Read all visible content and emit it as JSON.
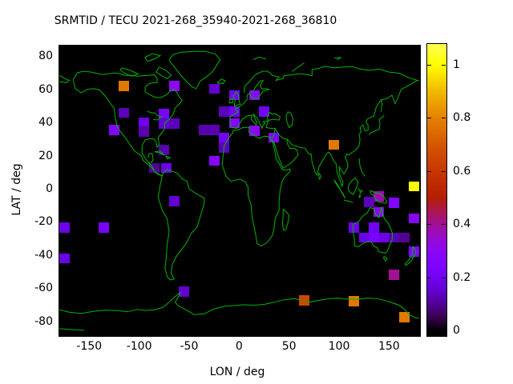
{
  "title": "SRMTID / TECU 2021-268_35940-2021-268_36810",
  "chart_data": {
    "type": "heatmap",
    "title": "SRMTID / TECU 2021-268_35940-2021-268_36810",
    "xlabel": "LON / deg",
    "ylabel": "LAT / deg",
    "xlim": [
      -180,
      180
    ],
    "ylim": [
      -89,
      86
    ],
    "x_ticks": [
      -150,
      -100,
      -50,
      0,
      50,
      100,
      150
    ],
    "y_ticks": [
      80,
      60,
      40,
      20,
      0,
      -20,
      -40,
      -60,
      -80
    ],
    "grid": false,
    "background_color": "#000000",
    "coastline_color": "#00b400",
    "cell_size": {
      "lon_deg": 10,
      "lat_deg": 6.1
    },
    "colorbar": {
      "min": 0,
      "max": 1,
      "ticks": [
        0,
        0.2,
        0.4,
        0.6,
        0.8,
        1
      ],
      "tick_labels": [
        "0",
        "0.2",
        "0.4",
        "0.6",
        "0.8",
        "1"
      ],
      "position": "right",
      "palette": "gnuplot default pm3d (black-violet-magenta-red-orange-yellow)"
    },
    "cells": [
      {
        "lon": -115,
        "lat": 62,
        "value": 0.78
      },
      {
        "lon": -65,
        "lat": 62,
        "value": 0.3
      },
      {
        "lon": -25,
        "lat": 60.5,
        "value": 0.15
      },
      {
        "lon": -5,
        "lat": 56.5,
        "value": 0.2
      },
      {
        "lon": 15,
        "lat": 56.5,
        "value": 0.27
      },
      {
        "lon": -15,
        "lat": 46.5,
        "value": 0.13
      },
      {
        "lon": -5,
        "lat": 46.5,
        "value": 0.2
      },
      {
        "lon": 25,
        "lat": 46.5,
        "value": 0.2
      },
      {
        "lon": -115,
        "lat": 46,
        "value": 0.13
      },
      {
        "lon": -75,
        "lat": 45.3,
        "value": 0.22
      },
      {
        "lon": -95,
        "lat": 40,
        "value": 0.18
      },
      {
        "lon": -75,
        "lat": 39.3,
        "value": 0.15
      },
      {
        "lon": -65,
        "lat": 39.3,
        "value": 0.13
      },
      {
        "lon": -125,
        "lat": 35.4,
        "value": 0.25
      },
      {
        "lon": -95,
        "lat": 34.5,
        "value": 0.12
      },
      {
        "lon": -35,
        "lat": 35.5,
        "value": 0.12
      },
      {
        "lon": -25,
        "lat": 35.5,
        "value": 0.12
      },
      {
        "lon": -5,
        "lat": 39.5,
        "value": 0.27
      },
      {
        "lon": 15,
        "lat": 35,
        "value": 0.3
      },
      {
        "lon": 35,
        "lat": 31,
        "value": 0.25
      },
      {
        "lon": -15,
        "lat": 30.8,
        "value": 0.2
      },
      {
        "lon": -15,
        "lat": 24.8,
        "value": 0.13
      },
      {
        "lon": -75,
        "lat": 23.4,
        "value": 0.12
      },
      {
        "lon": -85,
        "lat": 12.5,
        "value": 0.1
      },
      {
        "lon": -73,
        "lat": 12.5,
        "value": 0.18
      },
      {
        "lon": -25,
        "lat": 17,
        "value": 0.28
      },
      {
        "lon": 95,
        "lat": 26.5,
        "value": 0.78
      },
      {
        "lon": -65,
        "lat": -7.5,
        "value": 0.15
      },
      {
        "lon": -175,
        "lat": -23.4,
        "value": 0.18
      },
      {
        "lon": -135,
        "lat": -23.4,
        "value": 0.22
      },
      {
        "lon": -175,
        "lat": -42,
        "value": 0.18
      },
      {
        "lon": -55,
        "lat": -62,
        "value": 0.15
      },
      {
        "lon": 140,
        "lat": -4.7,
        "value": 0.38
      },
      {
        "lon": 130,
        "lat": -8,
        "value": 0.13
      },
      {
        "lon": 155,
        "lat": -8.5,
        "value": 0.25
      },
      {
        "lon": 140,
        "lat": -14,
        "value": 0.3
      },
      {
        "lon": 175,
        "lat": 1.5,
        "value": 1.0
      },
      {
        "lon": 175,
        "lat": -17.9,
        "value": 0.28
      },
      {
        "lon": 175,
        "lat": -38,
        "value": 0.25
      },
      {
        "lon": 115,
        "lat": -23.4,
        "value": 0.18
      },
      {
        "lon": 135,
        "lat": -23.4,
        "value": 0.2
      },
      {
        "lon": 125,
        "lat": -29.5,
        "value": 0.18
      },
      {
        "lon": 135,
        "lat": -29.5,
        "value": 0.22
      },
      {
        "lon": 145,
        "lat": -29.5,
        "value": 0.18
      },
      {
        "lon": 155,
        "lat": -29.5,
        "value": 0.12
      },
      {
        "lon": 165,
        "lat": -29.5,
        "value": 0.1
      },
      {
        "lon": 155,
        "lat": -52,
        "value": 0.4
      },
      {
        "lon": 65,
        "lat": -67.5,
        "value": 0.65
      },
      {
        "lon": 115,
        "lat": -67.8,
        "value": 0.78
      },
      {
        "lon": 165,
        "lat": -77.5,
        "value": 0.78
      }
    ]
  }
}
